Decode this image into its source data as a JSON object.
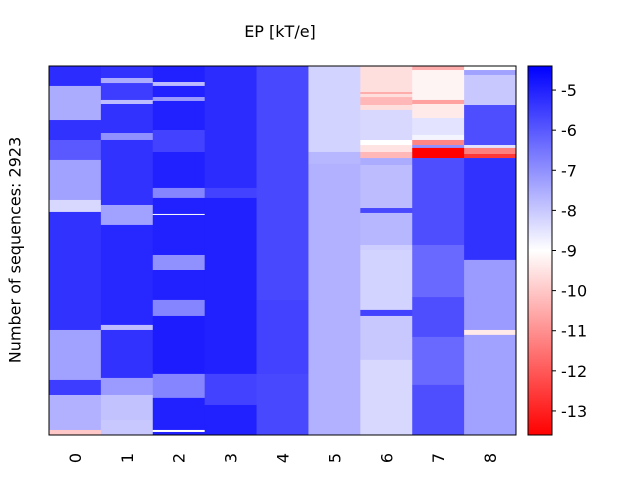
{
  "chart_data": {
    "type": "heatmap",
    "title": "EP [kT/e]",
    "ylabel": "Number of sequences: 2923",
    "xlabel": "",
    "n_rows": 2923,
    "x_tick_labels": [
      "0",
      "1",
      "2",
      "3",
      "4",
      "5",
      "6",
      "7",
      "8"
    ],
    "colorbar": {
      "label": "EP [kT/e]",
      "range": [
        -13.6,
        -4.4
      ],
      "ticks": [
        -5,
        -6,
        -7,
        -8,
        -9,
        -10,
        -11,
        -12,
        -13
      ],
      "tick_labels": [
        "-5",
        "-6",
        "-7",
        "-8",
        "-9",
        "-10",
        "-11",
        "-12",
        "-13"
      ],
      "colormap": "bwr",
      "colors": {
        "low": "#ff0000",
        "mid": "#ffffff",
        "high": "#0000ff"
      }
    },
    "columns": [
      {
        "label": "0",
        "segments": [
          [
            0,
            158,
            -5.2
          ],
          [
            158,
            428,
            -7.5
          ],
          [
            428,
            586,
            -5.3
          ],
          [
            586,
            744,
            -6.0
          ],
          [
            744,
            1061,
            -7.3
          ],
          [
            1061,
            1156,
            -8.3
          ],
          [
            1156,
            2091,
            -5.3
          ],
          [
            2091,
            2487,
            -7.3
          ],
          [
            2487,
            2606,
            -5.5
          ],
          [
            2606,
            2883,
            -7.6
          ],
          [
            2883,
            2923,
            -10.0
          ]
        ]
      },
      {
        "label": "1",
        "segments": [
          [
            0,
            95,
            -5.3
          ],
          [
            95,
            135,
            -7.5
          ],
          [
            135,
            269,
            -5.5
          ],
          [
            269,
            301,
            -7.8
          ],
          [
            301,
            531,
            -5.3
          ],
          [
            531,
            586,
            -7.0
          ],
          [
            586,
            1101,
            -5.3
          ],
          [
            1101,
            1259,
            -7.3
          ],
          [
            1259,
            2051,
            -5.1
          ],
          [
            2051,
            2091,
            -7.8
          ],
          [
            2091,
            2471,
            -5.3
          ],
          [
            2471,
            2606,
            -7.2
          ],
          [
            2606,
            2804,
            -7.9
          ],
          [
            2804,
            2923,
            -8.0
          ]
        ]
      },
      {
        "label": "2",
        "segments": [
          [
            0,
            127,
            -5.0
          ],
          [
            127,
            158,
            -7.8
          ],
          [
            158,
            246,
            -5.0
          ],
          [
            246,
            277,
            -7.2
          ],
          [
            277,
            507,
            -5.0
          ],
          [
            507,
            681,
            -5.6
          ],
          [
            681,
            966,
            -5.0
          ],
          [
            966,
            1045,
            -6.8
          ],
          [
            1045,
            1172,
            -5.0
          ],
          [
            1172,
            1180,
            -9.0
          ],
          [
            1180,
            1497,
            -5.0
          ],
          [
            1497,
            1616,
            -7.0
          ],
          [
            1616,
            1853,
            -5.0
          ],
          [
            1853,
            1980,
            -6.8
          ],
          [
            1980,
            2439,
            -4.9
          ],
          [
            2439,
            2629,
            -6.8
          ],
          [
            2629,
            2883,
            -5.0
          ],
          [
            2883,
            2899,
            -9.0
          ],
          [
            2899,
            2923,
            -5.0
          ]
        ]
      },
      {
        "label": "3",
        "segments": [
          [
            0,
            966,
            -5.2
          ],
          [
            966,
            1045,
            -5.6
          ],
          [
            1045,
            2439,
            -5.0
          ],
          [
            2439,
            2685,
            -5.6
          ],
          [
            2685,
            2923,
            -5.0
          ]
        ]
      },
      {
        "label": "4",
        "segments": [
          [
            0,
            1853,
            -5.7
          ],
          [
            1853,
            2439,
            -5.6
          ],
          [
            2439,
            2923,
            -5.7
          ]
        ]
      },
      {
        "label": "5",
        "segments": [
          [
            0,
            681,
            -8.2
          ],
          [
            681,
            776,
            -7.7
          ],
          [
            776,
            2923,
            -7.6
          ]
        ]
      },
      {
        "label": "6",
        "segments": [
          [
            0,
            206,
            -9.6
          ],
          [
            206,
            222,
            -10.5
          ],
          [
            222,
            246,
            -9.6
          ],
          [
            246,
            309,
            -10.3
          ],
          [
            309,
            348,
            -9.6
          ],
          [
            348,
            586,
            -8.3
          ],
          [
            586,
            626,
            -9.0
          ],
          [
            626,
            681,
            -9.5
          ],
          [
            681,
            729,
            -10.3
          ],
          [
            729,
            784,
            -7.5
          ],
          [
            784,
            1125,
            -7.8
          ],
          [
            1125,
            1164,
            -5.7
          ],
          [
            1164,
            1418,
            -7.7
          ],
          [
            1418,
            1457,
            -8.1
          ],
          [
            1457,
            1932,
            -8.2
          ],
          [
            1932,
            1980,
            -5.6
          ],
          [
            1980,
            2328,
            -8.0
          ],
          [
            2328,
            2923,
            -8.3
          ]
        ]
      },
      {
        "label": "7",
        "segments": [
          [
            0,
            32,
            -10.5
          ],
          [
            32,
            269,
            -9.2
          ],
          [
            269,
            301,
            -10.7
          ],
          [
            301,
            412,
            -9.4
          ],
          [
            412,
            546,
            -8.5
          ],
          [
            546,
            586,
            -8.8
          ],
          [
            586,
            626,
            -11.2
          ],
          [
            626,
            649,
            -7.0
          ],
          [
            649,
            729,
            -13.6
          ],
          [
            729,
            1418,
            -5.8
          ],
          [
            1418,
            1830,
            -6.3
          ],
          [
            1830,
            2146,
            -5.8
          ],
          [
            2146,
            2526,
            -6.3
          ],
          [
            2526,
            2923,
            -5.8
          ]
        ]
      },
      {
        "label": "8",
        "segments": [
          [
            0,
            32,
            -9.0
          ],
          [
            32,
            71,
            -7.3
          ],
          [
            71,
            309,
            -8.0
          ],
          [
            309,
            626,
            -5.8
          ],
          [
            626,
            649,
            -8.5
          ],
          [
            649,
            697,
            -11.3
          ],
          [
            697,
            729,
            -12.6
          ],
          [
            729,
            1536,
            -5.3
          ],
          [
            1536,
            2091,
            -7.2
          ],
          [
            2091,
            2130,
            -9.4
          ],
          [
            2130,
            2923,
            -7.3
          ]
        ]
      }
    ]
  }
}
